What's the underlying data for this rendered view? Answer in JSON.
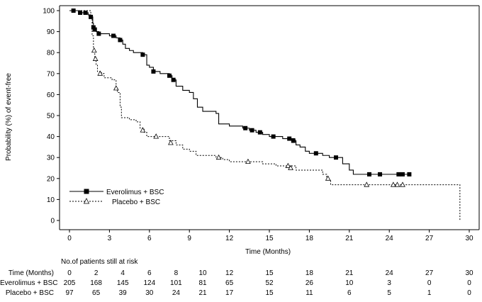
{
  "chart_data": {
    "type": "line",
    "step": true,
    "xlabel": "Time (Months)",
    "ylabel": "Probability (%) of event-free",
    "xlim": [
      0,
      30
    ],
    "ylim": [
      0,
      100
    ],
    "xticks": [
      0,
      3,
      6,
      9,
      12,
      15,
      18,
      21,
      24,
      27,
      30
    ],
    "yticks": [
      0,
      10,
      20,
      30,
      40,
      50,
      60,
      70,
      80,
      90,
      100
    ],
    "grid": false,
    "legend_position": "lower-left",
    "series": [
      {
        "name": "Everolimus + BSC",
        "color": "#000000",
        "line_style": "solid",
        "marker": "filled-square",
        "points": [
          [
            0,
            100
          ],
          [
            0.4,
            100
          ],
          [
            0.8,
            99
          ],
          [
            1.2,
            99
          ],
          [
            1.4,
            98
          ],
          [
            1.6,
            97
          ],
          [
            1.75,
            94
          ],
          [
            1.8,
            92
          ],
          [
            1.9,
            91
          ],
          [
            2.0,
            90
          ],
          [
            2.2,
            89
          ],
          [
            3.0,
            88
          ],
          [
            3.5,
            87
          ],
          [
            3.8,
            86
          ],
          [
            4.0,
            84
          ],
          [
            4.2,
            82
          ],
          [
            4.5,
            81
          ],
          [
            4.8,
            80
          ],
          [
            5.5,
            79
          ],
          [
            5.8,
            74
          ],
          [
            6.0,
            73
          ],
          [
            6.3,
            71
          ],
          [
            6.8,
            70
          ],
          [
            7.5,
            69
          ],
          [
            7.7,
            67
          ],
          [
            8.0,
            64
          ],
          [
            8.5,
            62
          ],
          [
            9.0,
            61
          ],
          [
            9.3,
            58
          ],
          [
            9.6,
            54
          ],
          [
            10.0,
            52
          ],
          [
            11.0,
            51
          ],
          [
            11.2,
            46
          ],
          [
            12.0,
            45
          ],
          [
            13.0,
            44
          ],
          [
            13.5,
            43
          ],
          [
            14.0,
            42
          ],
          [
            14.5,
            41
          ],
          [
            15.0,
            40
          ],
          [
            16.0,
            39
          ],
          [
            16.9,
            38
          ],
          [
            17.0,
            36
          ],
          [
            17.3,
            35
          ],
          [
            17.7,
            33
          ],
          [
            18.0,
            32
          ],
          [
            19.0,
            31
          ],
          [
            19.5,
            30
          ],
          [
            20.0,
            30
          ],
          [
            20.5,
            27
          ],
          [
            21.0,
            24
          ],
          [
            21.3,
            22
          ],
          [
            22.5,
            22
          ],
          [
            23.5,
            22
          ],
          [
            25.0,
            22
          ],
          [
            25.6,
            22
          ]
        ],
        "censor_marks": [
          [
            0.3,
            100
          ],
          [
            0.8,
            99
          ],
          [
            1.2,
            99
          ],
          [
            1.6,
            97
          ],
          [
            1.8,
            92
          ],
          [
            1.9,
            91
          ],
          [
            2.2,
            89
          ],
          [
            3.3,
            88
          ],
          [
            3.8,
            86
          ],
          [
            5.5,
            79
          ],
          [
            6.3,
            71
          ],
          [
            7.5,
            69
          ],
          [
            7.8,
            67
          ],
          [
            13.2,
            44
          ],
          [
            13.7,
            43
          ],
          [
            14.3,
            42
          ],
          [
            15.3,
            40
          ],
          [
            16.5,
            39
          ],
          [
            16.8,
            38
          ],
          [
            18.5,
            32
          ],
          [
            20.0,
            30
          ],
          [
            22.5,
            22
          ],
          [
            23.3,
            22
          ],
          [
            24.7,
            22
          ],
          [
            25.0,
            22
          ],
          [
            25.5,
            22
          ]
        ]
      },
      {
        "name": "Placebo + BSC",
        "color": "#000000",
        "line_style": "dotted",
        "marker": "open-triangle",
        "points": [
          [
            0,
            100
          ],
          [
            1.6,
            97
          ],
          [
            1.7,
            88
          ],
          [
            1.8,
            81
          ],
          [
            1.9,
            77
          ],
          [
            2.0,
            74
          ],
          [
            2.1,
            71
          ],
          [
            2.4,
            70
          ],
          [
            2.6,
            68
          ],
          [
            3.2,
            67
          ],
          [
            3.5,
            63
          ],
          [
            3.6,
            61
          ],
          [
            3.8,
            54
          ],
          [
            3.9,
            49
          ],
          [
            4.5,
            48
          ],
          [
            5.0,
            47
          ],
          [
            5.3,
            44
          ],
          [
            5.6,
            42
          ],
          [
            5.8,
            40
          ],
          [
            6.5,
            40
          ],
          [
            7.2,
            40
          ],
          [
            7.5,
            38
          ],
          [
            8.0,
            36
          ],
          [
            8.5,
            34
          ],
          [
            9.0,
            33
          ],
          [
            9.5,
            31
          ],
          [
            11.0,
            30
          ],
          [
            11.5,
            29
          ],
          [
            12.0,
            28
          ],
          [
            13.5,
            28
          ],
          [
            14.5,
            27
          ],
          [
            15.5,
            26
          ],
          [
            16.5,
            26
          ],
          [
            17.0,
            24
          ],
          [
            17.5,
            24
          ],
          [
            19.0,
            22
          ],
          [
            19.3,
            20
          ],
          [
            19.5,
            19
          ],
          [
            19.6,
            17
          ],
          [
            20.0,
            17
          ],
          [
            24.0,
            17
          ],
          [
            29.3,
            17
          ],
          [
            29.3,
            0
          ]
        ],
        "censor_marks": [
          [
            1.85,
            81
          ],
          [
            1.95,
            77
          ],
          [
            2.3,
            70
          ],
          [
            3.5,
            63
          ],
          [
            5.5,
            43
          ],
          [
            6.5,
            40
          ],
          [
            7.6,
            37
          ],
          [
            11.2,
            30
          ],
          [
            13.4,
            28
          ],
          [
            16.4,
            26
          ],
          [
            16.6,
            25
          ],
          [
            19.4,
            20
          ],
          [
            22.3,
            17
          ],
          [
            24.3,
            17
          ],
          [
            24.6,
            17
          ],
          [
            25.0,
            17
          ]
        ]
      }
    ],
    "risk_table": {
      "title": "No.of patients still at risk",
      "header_label": "Time (Months)",
      "times": [
        0,
        2,
        4,
        6,
        8,
        10,
        12,
        15,
        18,
        21,
        24,
        27,
        30
      ],
      "time_labels": [
        "0",
        "2",
        "4",
        "6",
        "8",
        "10",
        "12",
        "15",
        "18",
        "21",
        "24",
        "27",
        "30"
      ],
      "rows": [
        {
          "label": "Everolimus + BSC",
          "values": [
            "205",
            "168",
            "145",
            "124",
            "101",
            "81",
            "65",
            "52",
            "26",
            "10",
            "3",
            "0",
            "0"
          ]
        },
        {
          "label": "Placebo + BSC",
          "values": [
            "97",
            "65",
            "39",
            "30",
            "24",
            "21",
            "17",
            "15",
            "11",
            "6",
            "5",
            "1",
            "0"
          ]
        }
      ]
    }
  }
}
